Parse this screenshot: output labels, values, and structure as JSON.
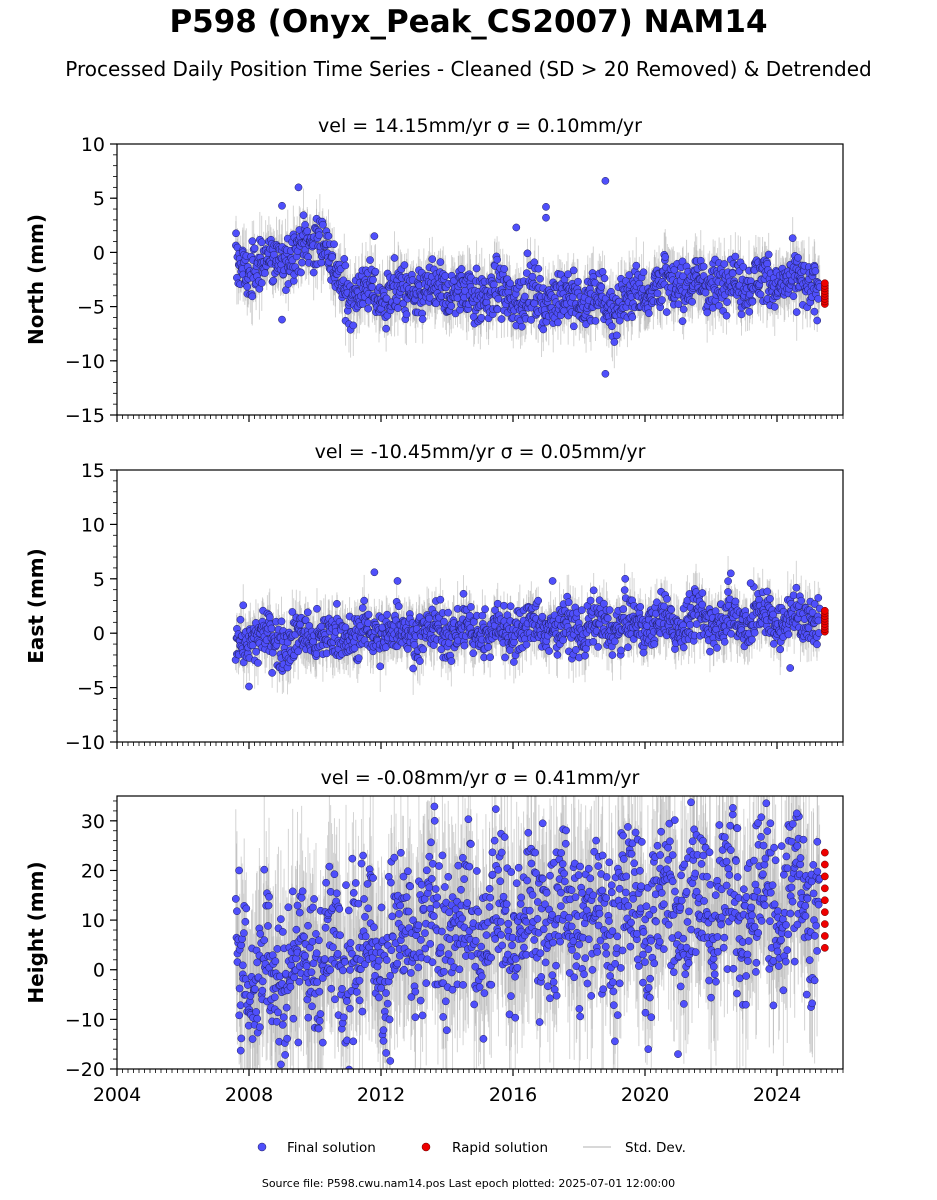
{
  "title": "P598 (Onyx_Peak_CS2007) NAM14",
  "subtitle": "Processed Daily Position Time Series - Cleaned (SD > 20 Removed) & Detrended",
  "footer": "Source file: P598.cwu.nam14.pos  Last epoch plotted: 2025-07-01 12:00:00",
  "colors": {
    "final": "#4f4ffb",
    "final_edge": "#1e1e5a",
    "rapid": "#ee0000",
    "stddev": "#b0b0b0"
  },
  "chart_data": [
    {
      "type": "scatter",
      "title": "vel = 14.15mm/yr   σ = 0.10mm/yr",
      "ylabel": "North (mm)",
      "xlim": [
        2004,
        2026
      ],
      "ylim": [
        -15,
        10
      ],
      "yticks": [
        -15,
        -10,
        -5,
        0,
        5,
        10
      ],
      "ytick_labels": [
        "−15",
        "−10",
        "−5",
        "0",
        "5",
        "10"
      ],
      "series": [
        {
          "name": "Final solution",
          "x": [
            2007.6,
            2008.0,
            2008.5,
            2009.0,
            2009.5,
            2010.0,
            2010.3,
            2010.6,
            2011.0,
            2012.0,
            2013.0,
            2014.0,
            2015.0,
            2016.0,
            2017.0,
            2018.0,
            2019.0,
            2019.5,
            2020.0,
            2021.0,
            2022.0,
            2023.0,
            2024.0,
            2025.0,
            2025.3
          ],
          "y": [
            -1.2,
            -1.5,
            -1.0,
            -0.5,
            0.0,
            1.5,
            1.0,
            -2.5,
            -3.5,
            -3.8,
            -3.8,
            -3.5,
            -3.8,
            -4.0,
            -4.2,
            -4.3,
            -4.8,
            -4.2,
            -3.2,
            -3.0,
            -2.8,
            -2.6,
            -2.8,
            -3.0,
            -3.2
          ],
          "spread": 1.2
        },
        {
          "name": "Rapid solution",
          "x": [
            2025.45
          ],
          "y": [
            -3.8
          ],
          "spread": 0.6
        }
      ],
      "outliers": {
        "x": [
          2009.5,
          2009.0,
          2009.0,
          2011.8,
          2016.1,
          2017.0,
          2017.0,
          2018.8,
          2018.8
        ],
        "y": [
          6.0,
          4.3,
          -6.2,
          1.5,
          2.3,
          4.2,
          3.2,
          6.6,
          -11.2
        ]
      },
      "legend": "bottom-center"
    },
    {
      "type": "scatter",
      "title": "vel = -10.45mm/yr   σ = 0.05mm/yr",
      "ylabel": "East (mm)",
      "xlim": [
        2004,
        2026
      ],
      "ylim": [
        -10,
        15
      ],
      "yticks": [
        -10,
        -5,
        0,
        5,
        10,
        15
      ],
      "ytick_labels": [
        "−10",
        "−5",
        "0",
        "5",
        "10",
        "15"
      ],
      "series": [
        {
          "name": "Final solution",
          "x": [
            2007.6,
            2008.0,
            2009.0,
            2010.0,
            2011.0,
            2012.0,
            2013.0,
            2014.0,
            2015.0,
            2016.0,
            2017.0,
            2018.0,
            2019.0,
            2020.0,
            2021.0,
            2022.0,
            2023.0,
            2024.0,
            2025.0,
            2025.3
          ],
          "y": [
            -0.8,
            -0.5,
            -0.5,
            -0.3,
            -0.2,
            0.0,
            0.2,
            0.3,
            0.3,
            0.3,
            0.5,
            0.5,
            0.6,
            0.8,
            1.0,
            1.2,
            1.3,
            1.3,
            1.2,
            1.1
          ],
          "spread": 1.1
        },
        {
          "name": "Rapid solution",
          "x": [
            2025.45
          ],
          "y": [
            1.1
          ],
          "spread": 0.6
        }
      ],
      "outliers": {
        "x": [
          2008.0,
          2011.8,
          2012.5,
          2017.2,
          2019.4,
          2022.6,
          2023.2,
          2024.4
        ],
        "y": [
          -4.9,
          5.6,
          4.8,
          4.8,
          5.0,
          5.5,
          4.6,
          -3.2
        ]
      },
      "legend": "bottom-center"
    },
    {
      "type": "scatter",
      "title": "vel = -0.08mm/yr   σ = 0.41mm/yr",
      "ylabel": "Height (mm)",
      "xlim": [
        2004,
        2026
      ],
      "ylim": [
        -20,
        35
      ],
      "yticks": [
        -20,
        -10,
        0,
        10,
        20,
        30
      ],
      "ytick_labels": [
        "−20",
        "−10",
        "0",
        "10",
        "20",
        "30"
      ],
      "series": [
        {
          "name": "Final solution",
          "x": [
            2007.6,
            2008.0,
            2009.0,
            2010.0,
            2011.0,
            2012.0,
            2013.0,
            2014.0,
            2015.0,
            2016.0,
            2017.0,
            2018.0,
            2019.0,
            2020.0,
            2021.0,
            2022.0,
            2023.0,
            2024.0,
            2025.0,
            2025.3
          ],
          "y": [
            2.0,
            0.0,
            1.0,
            2.0,
            3.0,
            5.0,
            6.0,
            8.0,
            9.0,
            10.0,
            10.0,
            11.0,
            10.0,
            12.0,
            13.0,
            14.0,
            13.0,
            13.0,
            14.0,
            14.0
          ],
          "spread": 8.0
        },
        {
          "name": "Rapid solution",
          "x": [
            2025.45
          ],
          "y": [
            14.0
          ],
          "spread": 6.0
        }
      ],
      "outliers": {
        "x": [
          2007.7,
          2016.9,
          2020.1,
          2021.0,
          2022.8,
          2023.8,
          2024.6,
          2024.9
        ],
        "y": [
          20.0,
          29.5,
          -16.0,
          -17.0,
          28.5,
          29.5,
          31.5,
          -5.0
        ]
      },
      "legend": "bottom-center"
    }
  ],
  "xticks": [
    2004,
    2008,
    2012,
    2016,
    2020,
    2024
  ],
  "xtick_labels": [
    "2004",
    "2008",
    "2012",
    "2016",
    "2020",
    "2024"
  ],
  "legend": {
    "final_label": "Final solution",
    "rapid_label": "Rapid solution",
    "std_label": "Std. Dev."
  }
}
